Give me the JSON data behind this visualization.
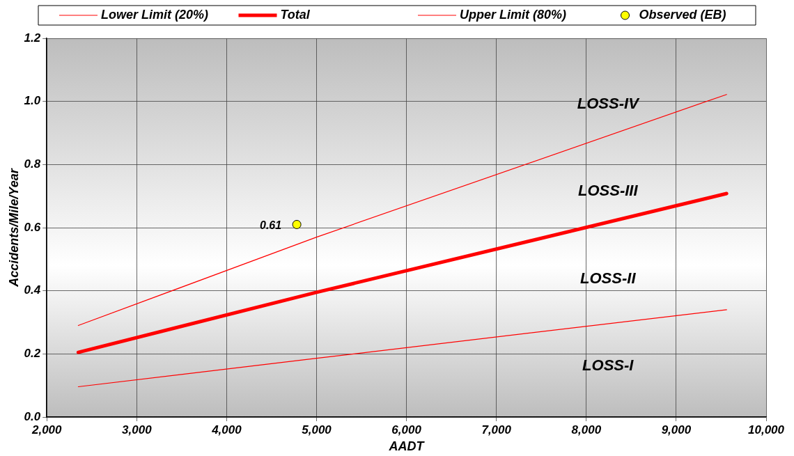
{
  "chart_data": {
    "type": "line",
    "xlabel": "AADT",
    "ylabel": "Accidents/Mile/Year",
    "xlim": [
      2000,
      10000
    ],
    "xticks": [
      {
        "value": 2000,
        "label": "2,000"
      },
      {
        "value": 3000,
        "label": "3,000"
      },
      {
        "value": 4000,
        "label": "4,000"
      },
      {
        "value": 5000,
        "label": "5,000"
      },
      {
        "value": 6000,
        "label": "6,000"
      },
      {
        "value": 7000,
        "label": "7,000"
      },
      {
        "value": 8000,
        "label": "8,000"
      },
      {
        "value": 9000,
        "label": "9,000"
      },
      {
        "value": 10000,
        "label": "10,000"
      }
    ],
    "ylim": [
      0,
      1.2
    ],
    "yticks": [
      {
        "value": 0,
        "label": "0.0"
      },
      {
        "value": 0.2,
        "label": "0.2"
      },
      {
        "value": 0.4,
        "label": "0.4"
      },
      {
        "value": 0.6,
        "label": "0.6"
      },
      {
        "value": 0.8,
        "label": "0.8"
      },
      {
        "value": 1,
        "label": "1.0"
      },
      {
        "value": 1.2,
        "label": "1.2"
      }
    ],
    "grid": true,
    "legend": "top",
    "series": [
      {
        "name": "Lower Limit (20%)",
        "color": "#ff0000",
        "x": [
          2350,
          5000,
          9560
        ],
        "values": [
          0.096,
          0.186,
          0.34
        ]
      },
      {
        "name": "Total",
        "color": "#ff0000",
        "x": [
          2350,
          5000,
          9560
        ],
        "values": [
          0.205,
          0.395,
          0.708
        ]
      },
      {
        "name": "Upper Limit (80%)",
        "color": "#ff0000",
        "x": [
          2350,
          5000,
          9560
        ],
        "values": [
          0.29,
          0.57,
          1.022
        ]
      },
      {
        "name": "Observed (EB)",
        "color": "#ffff00",
        "type": "scatter",
        "marker": "circle",
        "x": [
          4780
        ],
        "values": [
          0.61
        ],
        "value_labels": [
          "0.61"
        ]
      }
    ],
    "annotations": [
      "LOSS-IV",
      "LOSS-III",
      "LOSS-II",
      "LOSS-I"
    ]
  }
}
